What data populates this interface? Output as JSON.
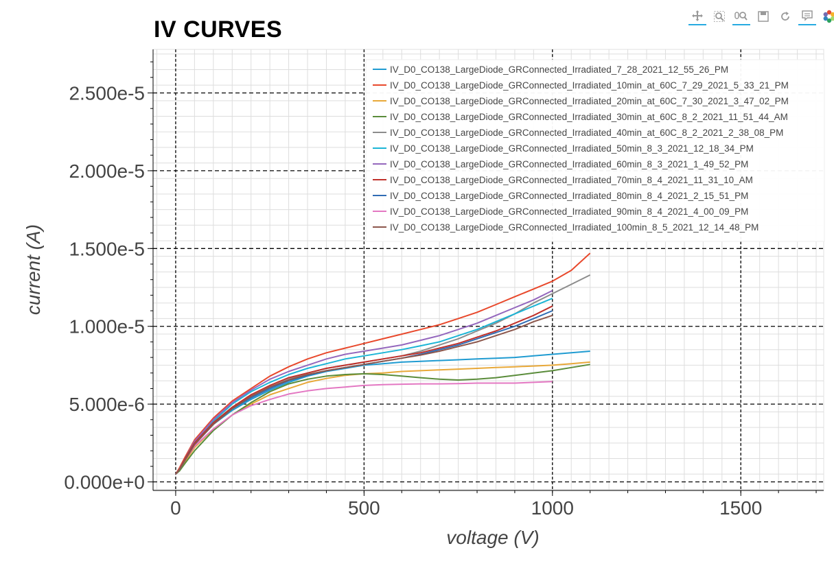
{
  "chart_data": {
    "type": "line",
    "title": "IV CURVES",
    "xlabel": "voltage (V)",
    "ylabel": "current (A)",
    "xlim": [
      -60,
      1720
    ],
    "ylim": [
      -5.5e-07,
      2.78e-05
    ],
    "x_ticks": [
      0,
      500,
      1000,
      1500
    ],
    "x_tick_labels": [
      "0",
      "500",
      "1000",
      "1500"
    ],
    "y_ticks": [
      0,
      5e-06,
      1e-05,
      1.5e-05,
      2e-05,
      2.5e-05
    ],
    "y_tick_labels": [
      "0.000e+0",
      "5.000e-6",
      "1.000e-5",
      "1.500e-5",
      "2.000e-5",
      "2.500e-5"
    ],
    "grid": true,
    "legend_position": "top-right",
    "series": [
      {
        "name": "IV_D0_CO138_LargeDiode_GRConnected_Irradiated_7_28_2021_12_55_26_PM",
        "color": "#1f9bd1",
        "x": [
          0,
          10,
          25,
          50,
          100,
          150,
          200,
          250,
          300,
          350,
          400,
          450,
          500,
          550,
          600,
          650,
          700,
          750,
          800,
          850,
          900,
          950,
          1000,
          1050,
          1100
        ],
        "y": [
          5e-07,
          8e-07,
          1.4e-06,
          2.4e-06,
          3.7e-06,
          4.6e-06,
          5.3e-06,
          5.9e-06,
          6.4e-06,
          6.8e-06,
          7.1e-06,
          7.3e-06,
          7.5e-06,
          7.6e-06,
          7.7e-06,
          7.75e-06,
          7.8e-06,
          7.85e-06,
          7.9e-06,
          7.95e-06,
          8e-06,
          8.1e-06,
          8.2e-06,
          8.3e-06,
          8.4e-06
        ]
      },
      {
        "name": "IV_D0_CO138_LargeDiode_GRConnected_Irradiated_10min_at_60C_7_29_2021_5_33_21_PM",
        "color": "#e8482b",
        "x": [
          0,
          10,
          25,
          50,
          100,
          150,
          200,
          250,
          300,
          350,
          400,
          450,
          500,
          550,
          600,
          650,
          700,
          750,
          800,
          850,
          900,
          950,
          1000,
          1050,
          1100
        ],
        "y": [
          5e-07,
          9e-07,
          1.6e-06,
          2.7e-06,
          4.1e-06,
          5.2e-06,
          6e-06,
          6.8e-06,
          7.4e-06,
          7.9e-06,
          8.3e-06,
          8.6e-06,
          8.9e-06,
          9.2e-06,
          9.5e-06,
          9.8e-06,
          1.01e-05,
          1.05e-05,
          1.09e-05,
          1.14e-05,
          1.19e-05,
          1.24e-05,
          1.29e-05,
          1.36e-05,
          1.47e-05
        ]
      },
      {
        "name": "IV_D0_CO138_LargeDiode_GRConnected_Irradiated_20min_at_60C_7_30_2021_3_47_02_PM",
        "color": "#e8a838",
        "x": [
          0,
          10,
          25,
          50,
          100,
          150,
          200,
          250,
          300,
          350,
          400,
          450,
          500,
          550,
          600,
          650,
          700,
          750,
          800,
          850,
          900,
          950,
          1000,
          1050,
          1100
        ],
        "y": [
          5e-07,
          8e-07,
          1.3e-06,
          2.2e-06,
          3.4e-06,
          4.3e-06,
          5e-06,
          5.6e-06,
          6e-06,
          6.4e-06,
          6.65e-06,
          6.85e-06,
          6.95e-06,
          7e-06,
          7.1e-06,
          7.15e-06,
          7.2e-06,
          7.25e-06,
          7.3e-06,
          7.35e-06,
          7.4e-06,
          7.45e-06,
          7.5e-06,
          7.6e-06,
          7.7e-06
        ]
      },
      {
        "name": "IV_D0_CO138_LargeDiode_GRConnected_Irradiated_30min_at_60C_8_2_2021_11_51_44_AM",
        "color": "#5a8c3a",
        "x": [
          0,
          10,
          25,
          50,
          100,
          150,
          200,
          250,
          300,
          350,
          400,
          450,
          500,
          550,
          600,
          650,
          700,
          750,
          800,
          850,
          900,
          950,
          1000,
          1050,
          1100
        ],
        "y": [
          5e-07,
          7e-07,
          1.2e-06,
          2e-06,
          3.3e-06,
          4.3e-06,
          5.1e-06,
          5.8e-06,
          6.3e-06,
          6.6e-06,
          6.8e-06,
          6.9e-06,
          6.95e-06,
          6.9e-06,
          6.8e-06,
          6.7e-06,
          6.6e-06,
          6.55e-06,
          6.6e-06,
          6.7e-06,
          6.85e-06,
          7e-06,
          7.15e-06,
          7.35e-06,
          7.55e-06
        ]
      },
      {
        "name": "IV_D0_CO138_LargeDiode_GRConnected_Irradiated_40min_at_60C_8_2_2021_2_38_08_PM",
        "color": "#8c8c8c",
        "x": [
          0,
          10,
          25,
          50,
          100,
          150,
          200,
          250,
          300,
          350,
          400,
          450,
          500,
          550,
          600,
          650,
          700,
          750,
          800,
          850,
          900,
          950,
          1000,
          1050,
          1100
        ],
        "y": [
          5e-07,
          8e-07,
          1.5e-06,
          2.5e-06,
          3.8e-06,
          4.8e-06,
          5.5e-06,
          6.1e-06,
          6.6e-06,
          7e-06,
          7.3e-06,
          7.5e-06,
          7.7e-06,
          7.9e-06,
          8.1e-06,
          8.4e-06,
          8.8e-06,
          9.2e-06,
          9.7e-06,
          1.02e-05,
          1.08e-05,
          1.15e-05,
          1.21e-05,
          1.27e-05,
          1.33e-05
        ]
      },
      {
        "name": "IV_D0_CO138_LargeDiode_GRConnected_Irradiated_50min_8_3_2021_12_18_34_PM",
        "color": "#1bb5d6",
        "x": [
          0,
          10,
          25,
          50,
          100,
          150,
          200,
          250,
          300,
          350,
          400,
          450,
          500,
          550,
          600,
          650,
          700,
          750,
          800,
          850,
          900,
          950,
          1000
        ],
        "y": [
          5e-07,
          8e-07,
          1.5e-06,
          2.6e-06,
          3.9e-06,
          5e-06,
          5.8e-06,
          6.4e-06,
          6.9e-06,
          7.3e-06,
          7.6e-06,
          7.9e-06,
          8.1e-06,
          8.3e-06,
          8.5e-06,
          8.75e-06,
          9e-06,
          9.4e-06,
          9.8e-06,
          1.03e-05,
          1.08e-05,
          1.13e-05,
          1.18e-05
        ]
      },
      {
        "name": "IV_D0_CO138_LargeDiode_GRConnected_Irradiated_60min_8_3_2021_1_49_52_PM",
        "color": "#9467bd",
        "x": [
          0,
          10,
          25,
          50,
          100,
          150,
          200,
          250,
          300,
          350,
          400,
          450,
          500,
          550,
          600,
          650,
          700,
          750,
          800,
          850,
          900,
          950,
          1000
        ],
        "y": [
          5e-07,
          8e-07,
          1.5e-06,
          2.6e-06,
          4e-06,
          5.1e-06,
          5.9e-06,
          6.6e-06,
          7.1e-06,
          7.5e-06,
          7.9e-06,
          8.2e-06,
          8.4e-06,
          8.6e-06,
          8.8e-06,
          9.1e-06,
          9.4e-06,
          9.8e-06,
          1.02e-05,
          1.07e-05,
          1.12e-05,
          1.17e-05,
          1.23e-05
        ]
      },
      {
        "name": "IV_D0_CO138_LargeDiode_GRConnected_Irradiated_70min_8_4_2021_11_31_10_AM",
        "color": "#c0302a",
        "x": [
          0,
          10,
          25,
          50,
          100,
          150,
          200,
          250,
          300,
          350,
          400,
          450,
          500,
          550,
          600,
          650,
          700,
          750,
          800,
          850,
          900,
          950,
          1000
        ],
        "y": [
          5e-07,
          8e-07,
          1.5e-06,
          2.5e-06,
          3.8e-06,
          4.8e-06,
          5.6e-06,
          6.2e-06,
          6.7e-06,
          7e-06,
          7.3e-06,
          7.5e-06,
          7.7e-06,
          7.9e-06,
          8.1e-06,
          8.3e-06,
          8.6e-06,
          8.9e-06,
          9.3e-06,
          9.7e-06,
          1.02e-05,
          1.07e-05,
          1.13e-05
        ]
      },
      {
        "name": "IV_D0_CO138_LargeDiode_GRConnected_Irradiated_80min_8_4_2021_2_15_51_PM",
        "color": "#2f6cb4",
        "x": [
          0,
          10,
          25,
          50,
          100,
          150,
          200,
          250,
          300,
          350,
          400,
          450,
          500,
          550,
          600,
          650,
          700,
          750,
          800,
          850,
          900,
          950,
          1000
        ],
        "y": [
          5e-07,
          8e-07,
          1.4e-06,
          2.4e-06,
          3.7e-06,
          4.7e-06,
          5.4e-06,
          6e-06,
          6.5e-06,
          6.85e-06,
          7.15e-06,
          7.35e-06,
          7.55e-06,
          7.75e-06,
          7.95e-06,
          8.2e-06,
          8.5e-06,
          8.8e-06,
          9.2e-06,
          9.6e-06,
          1e-05,
          1.05e-05,
          1.1e-05
        ]
      },
      {
        "name": "IV_D0_CO138_LargeDiode_GRConnected_Irradiated_90min_8_4_2021_4_00_09_PM",
        "color": "#e377c2",
        "x": [
          0,
          10,
          25,
          50,
          100,
          150,
          200,
          250,
          300,
          350,
          400,
          450,
          500,
          550,
          600,
          650,
          700,
          750,
          800,
          850,
          900,
          950,
          1000
        ],
        "y": [
          5e-07,
          8e-07,
          1.4e-06,
          2.3e-06,
          3.4e-06,
          4.3e-06,
          4.9e-06,
          5.3e-06,
          5.65e-06,
          5.85e-06,
          6e-06,
          6.1e-06,
          6.2e-06,
          6.25e-06,
          6.28e-06,
          6.3e-06,
          6.3e-06,
          6.32e-06,
          6.35e-06,
          6.35e-06,
          6.35e-06,
          6.4e-06,
          6.45e-06
        ]
      },
      {
        "name": "IV_D0_CO138_LargeDiode_GRConnected_Irradiated_100min_8_5_2021_12_14_48_PM",
        "color": "#8c564b",
        "x": [
          0,
          10,
          25,
          50,
          100,
          150,
          200,
          250,
          300,
          350,
          400,
          450,
          500,
          550,
          600,
          650,
          700,
          750,
          800,
          850,
          900,
          950,
          1000
        ],
        "y": [
          5e-07,
          8e-07,
          1.4e-06,
          2.4e-06,
          3.7e-06,
          4.7e-06,
          5.5e-06,
          6.1e-06,
          6.55e-06,
          6.9e-06,
          7.15e-06,
          7.35e-06,
          7.55e-06,
          7.75e-06,
          7.95e-06,
          8.15e-06,
          8.4e-06,
          8.7e-06,
          9e-06,
          9.4e-06,
          9.8e-06,
          1.03e-05,
          1.07e-05
        ]
      }
    ]
  },
  "toolbar": {
    "tools": [
      {
        "icon": "pan-icon",
        "active": true
      },
      {
        "icon": "box-zoom-icon",
        "active": false
      },
      {
        "icon": "wheel-zoom-icon",
        "active": true
      },
      {
        "icon": "save-icon",
        "active": false
      },
      {
        "icon": "reset-icon",
        "active": false
      },
      {
        "icon": "hover-icon",
        "active": true
      },
      {
        "icon": "bokeh-logo-icon",
        "active": false
      }
    ]
  }
}
